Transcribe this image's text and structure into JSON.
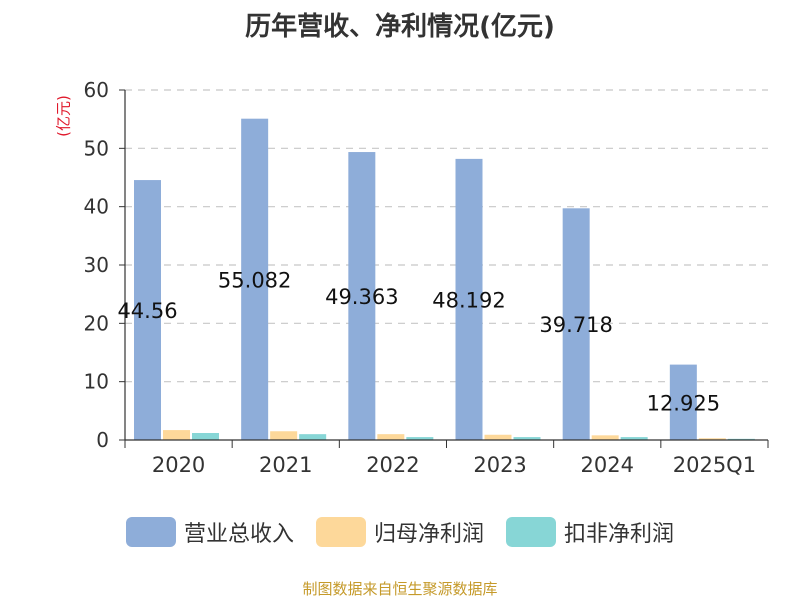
{
  "title": "历年营收、净利情况(亿元)",
  "footer": "制图数据来自恒生聚源数据库",
  "chart_data": {
    "type": "bar",
    "title": "历年营收、净利情况(亿元)",
    "ylabel": "(亿元)",
    "xlabel": "",
    "ylim": [
      0,
      60
    ],
    "yticks": [
      0,
      10,
      20,
      30,
      40,
      50,
      60
    ],
    "grid": true,
    "legend_position": "bottom",
    "categories": [
      "2020",
      "2021",
      "2022",
      "2023",
      "2024",
      "2025Q1"
    ],
    "series": [
      {
        "name": "营业总收入",
        "color": "#8eadd9",
        "values": [
          44.56,
          55.082,
          49.363,
          48.192,
          39.718,
          12.925
        ],
        "labels": [
          "44.56",
          "55.082",
          "49.363",
          "48.192",
          "39.718",
          "12.925"
        ]
      },
      {
        "name": "归母净利润",
        "color": "#fdd89a",
        "values": [
          1.7,
          1.5,
          1.0,
          0.9,
          0.8,
          0.3
        ]
      },
      {
        "name": "扣非净利润",
        "color": "#87d6d6",
        "values": [
          1.2,
          1.0,
          0.5,
          0.5,
          0.5,
          0.2
        ]
      }
    ]
  }
}
